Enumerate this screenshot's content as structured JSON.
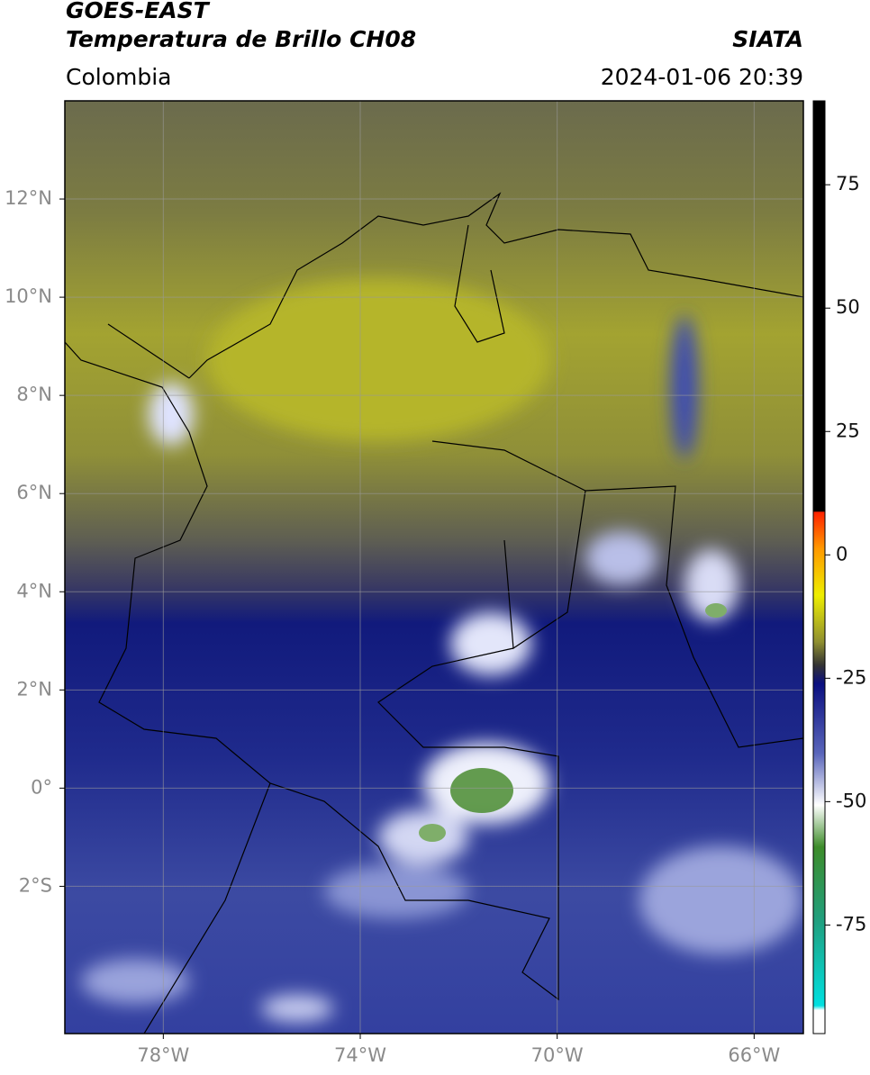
{
  "header": {
    "title": "GOES-EAST",
    "subtitle": "Temperatura de Brillo CH08",
    "source": "SIATA",
    "region": "Colombia",
    "datetime": "2024-01-06 20:39"
  },
  "map": {
    "xlim": [
      -80,
      -65
    ],
    "ylim": [
      -5,
      14
    ],
    "grid": true,
    "xticks": [
      {
        "value": -78,
        "label": "78°W"
      },
      {
        "value": -74,
        "label": "74°W"
      },
      {
        "value": -70,
        "label": "70°W"
      },
      {
        "value": -66,
        "label": "66°W"
      }
    ],
    "yticks": [
      {
        "value": 12,
        "label": "12°N"
      },
      {
        "value": 10,
        "label": "10°N"
      },
      {
        "value": 8,
        "label": "8°N"
      },
      {
        "value": 6,
        "label": "6°N"
      },
      {
        "value": 4,
        "label": "4°N"
      },
      {
        "value": 2,
        "label": "2°N"
      },
      {
        "value": 0,
        "label": "0°"
      },
      {
        "value": -2,
        "label": "2°S"
      }
    ]
  },
  "colorbar": {
    "clim": [
      -97,
      92
    ],
    "ticks": [
      75,
      50,
      25,
      0,
      -25,
      -50,
      -75
    ]
  }
}
